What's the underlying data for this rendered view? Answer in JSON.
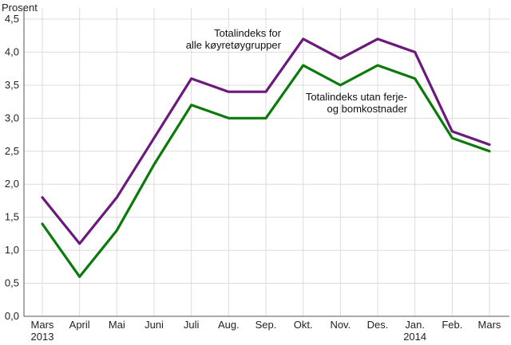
{
  "chart_data": {
    "type": "line",
    "ylabel": "Prosent",
    "ylim": [
      0,
      4.5
    ],
    "yticks": [
      "0,0",
      "0,5",
      "1,0",
      "1,5",
      "2,0",
      "2,5",
      "3,0",
      "3,5",
      "4,0",
      "4,5"
    ],
    "categories": [
      [
        "Mars",
        "2013"
      ],
      [
        "April",
        ""
      ],
      [
        "Mai",
        ""
      ],
      [
        "Juni",
        ""
      ],
      [
        "Juli",
        ""
      ],
      [
        "Aug.",
        ""
      ],
      [
        "Sep.",
        ""
      ],
      [
        "Okt.",
        ""
      ],
      [
        "Nov.",
        ""
      ],
      [
        "Des.",
        ""
      ],
      [
        "Jan.",
        "2014"
      ],
      [
        "Feb.",
        ""
      ],
      [
        "Mars",
        ""
      ]
    ],
    "grid": true,
    "series": [
      {
        "name_lines": [
          "Totalindeks for",
          "alle køyretøygrupper"
        ],
        "color": "#6b1a7b",
        "values": [
          1.8,
          1.1,
          1.8,
          2.7,
          3.6,
          3.4,
          3.4,
          4.2,
          3.9,
          4.2,
          4.0,
          2.8,
          2.6
        ]
      },
      {
        "name_lines": [
          "Totalindeks utan ferje-",
          "og bomkostnader"
        ],
        "color": "#0a7a0a",
        "values": [
          1.4,
          0.6,
          1.3,
          2.3,
          3.2,
          3.0,
          3.0,
          3.8,
          3.5,
          3.8,
          3.6,
          2.7,
          2.5
        ]
      }
    ]
  }
}
